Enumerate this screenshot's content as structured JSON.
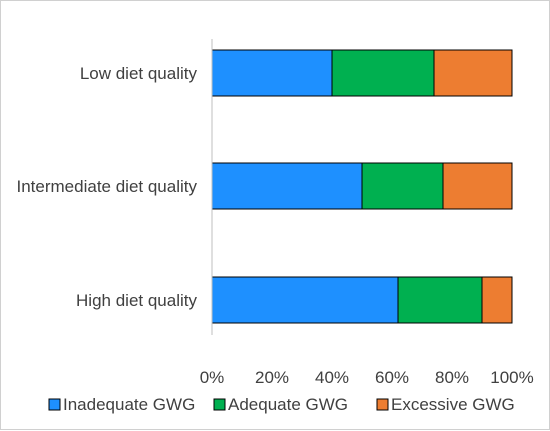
{
  "chart_data": {
    "type": "bar",
    "orientation": "horizontal",
    "stacked": true,
    "percent": true,
    "categories": [
      "Low diet quality",
      "Intermediate diet quality",
      "High diet quality"
    ],
    "series": [
      {
        "name": "Inadequate GWG",
        "values": [
          40,
          50,
          62
        ],
        "color": "#1E90FF"
      },
      {
        "name": "Adequate GWG",
        "values": [
          34,
          27,
          28
        ],
        "color": "#00B050"
      },
      {
        "name": "Excessive GWG",
        "values": [
          26,
          23,
          10
        ],
        "color": "#ED7D31"
      }
    ],
    "xlim": [
      0,
      100
    ],
    "xticks": [
      "0%",
      "20%",
      "40%",
      "60%",
      "80%",
      "100%"
    ],
    "grid": false,
    "legend": "bottom"
  }
}
